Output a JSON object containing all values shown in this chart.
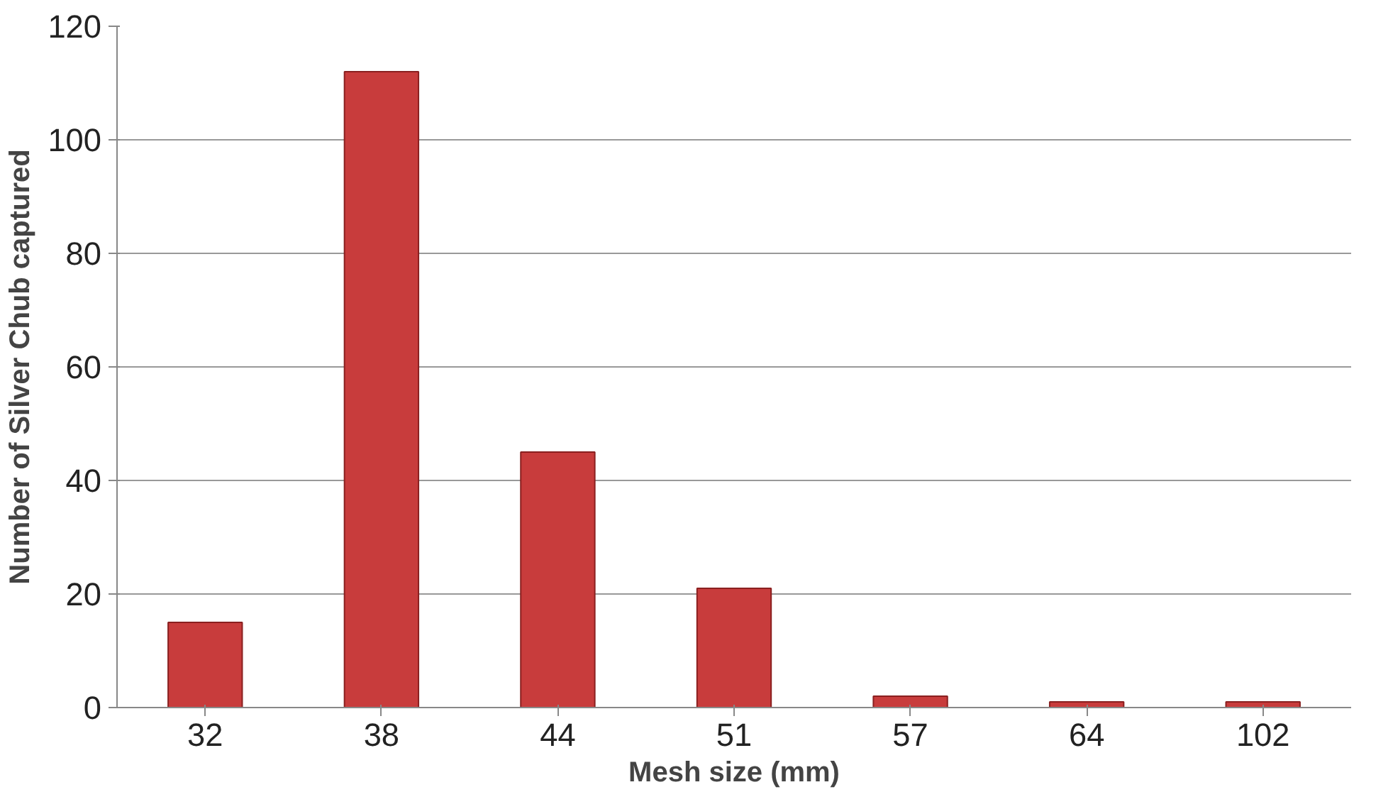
{
  "chart_data": {
    "type": "bar",
    "xlabel": "Mesh size (mm)",
    "ylabel": "Number of Silver Chub captured",
    "categories": [
      "32",
      "38",
      "44",
      "51",
      "57",
      "64",
      "102"
    ],
    "values": [
      15,
      112,
      45,
      21,
      2,
      1,
      1
    ],
    "color": "#c83c3c",
    "ylim": [
      0,
      120
    ],
    "yticks": [
      0,
      20,
      40,
      60,
      80,
      100,
      120
    ],
    "grid": "y"
  }
}
